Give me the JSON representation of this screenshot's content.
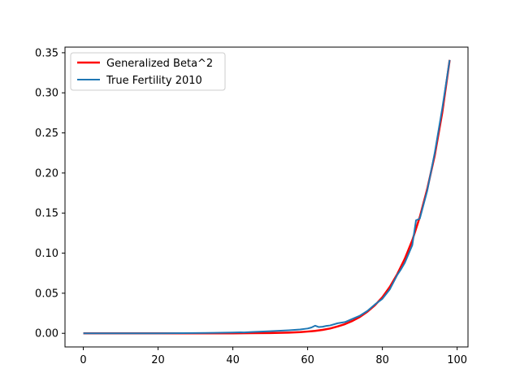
{
  "chart_data": {
    "type": "line",
    "title": "",
    "xlabel": "",
    "ylabel": "",
    "xlim": [
      -4.9,
      102.9
    ],
    "ylim": [
      -0.017,
      0.357
    ],
    "xticks": [
      0,
      20,
      40,
      60,
      80,
      100
    ],
    "yticks": [
      0.0,
      0.05,
      0.1,
      0.15,
      0.2,
      0.25,
      0.3,
      0.35
    ],
    "ytick_labels": [
      "0.00",
      "0.05",
      "0.10",
      "0.15",
      "0.20",
      "0.25",
      "0.30",
      "0.35"
    ],
    "xtick_labels": [
      "0",
      "20",
      "40",
      "60",
      "80",
      "100"
    ],
    "grid": false,
    "legend": {
      "placement": "top-left"
    },
    "series": [
      {
        "name": "Generalized Beta^2",
        "color": "#ff0000",
        "x": [
          0,
          10,
          20,
          30,
          40,
          45,
          50,
          55,
          58,
          60,
          62,
          64,
          66,
          68,
          70,
          72,
          74,
          76,
          78,
          80,
          82,
          84,
          86,
          88,
          90,
          92,
          94,
          96,
          98
        ],
        "y": [
          0,
          0,
          0,
          0,
          0,
          0.0002,
          0.0004,
          0.0009,
          0.0015,
          0.0022,
          0.003,
          0.0043,
          0.006,
          0.0085,
          0.0115,
          0.0155,
          0.0205,
          0.027,
          0.035,
          0.045,
          0.058,
          0.074,
          0.093,
          0.116,
          0.145,
          0.18,
          0.222,
          0.275,
          0.341
        ]
      },
      {
        "name": "True Fertility 2010",
        "color": "#1f77b4",
        "x": [
          0,
          10,
          20,
          30,
          35,
          40,
          42,
          43,
          45,
          50,
          55,
          58,
          60,
          61,
          62,
          63,
          64,
          65,
          66,
          68,
          70,
          72,
          74,
          76,
          78,
          80,
          82,
          84,
          85,
          86,
          88,
          89,
          90,
          92,
          94,
          96,
          98
        ],
        "y": [
          0,
          0,
          0,
          0.0003,
          0.0006,
          0.001,
          0.0013,
          0.0011,
          0.0016,
          0.0026,
          0.0038,
          0.0048,
          0.006,
          0.0072,
          0.0095,
          0.0078,
          0.0082,
          0.0092,
          0.0098,
          0.0125,
          0.014,
          0.018,
          0.022,
          0.028,
          0.036,
          0.043,
          0.055,
          0.073,
          0.08,
          0.088,
          0.11,
          0.141,
          0.143,
          0.178,
          0.225,
          0.28,
          0.341
        ]
      }
    ]
  }
}
